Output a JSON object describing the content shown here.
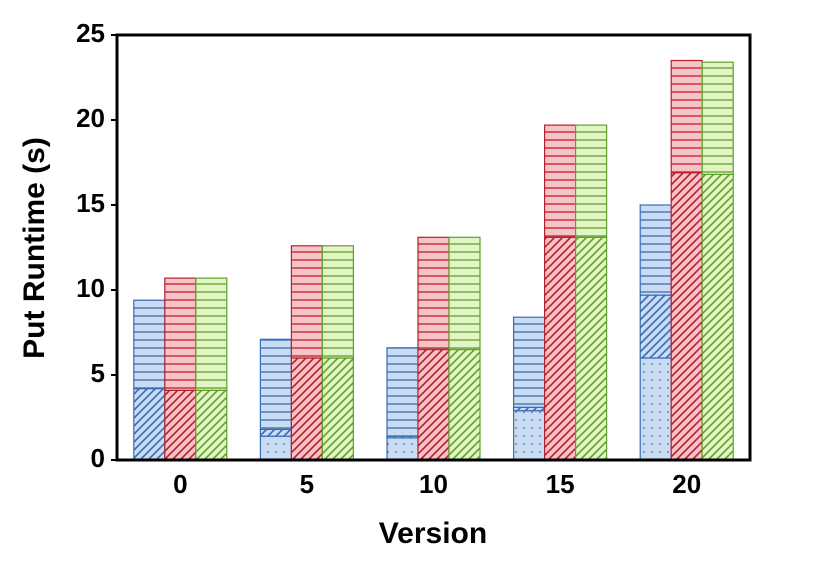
{
  "chart_data": {
    "type": "stacked-grouped-bar",
    "x_label": "Version",
    "y_label": "Put Runtime (s)",
    "categories": [
      0,
      5,
      10,
      15,
      20
    ],
    "ylim": [
      0,
      25
    ],
    "yticks": [
      0,
      5,
      10,
      15,
      20,
      25
    ],
    "series": [
      {
        "group": 0,
        "pattern": "dots",
        "color": "#3b6bb5",
        "fill": "#c9dcf2",
        "values": [
          0,
          1.4,
          1.3,
          2.9,
          6.0
        ]
      },
      {
        "group": 0,
        "pattern": "diagonal",
        "color": "#3b6bb5",
        "fill": "#c9dcf2",
        "values": [
          4.2,
          0.4,
          0.1,
          0.2,
          3.7
        ]
      },
      {
        "group": 0,
        "pattern": "horizontal",
        "color": "#3b6bb5",
        "fill": "#c9dcf2",
        "values": [
          5.2,
          5.3,
          5.2,
          5.3,
          5.3
        ]
      },
      {
        "group": 1,
        "pattern": "diagonal",
        "color": "#b5202e",
        "fill": "#f7c3c7",
        "values": [
          4.1,
          6.0,
          6.5,
          13.1,
          16.9
        ]
      },
      {
        "group": 1,
        "pattern": "horizontal",
        "color": "#b5202e",
        "fill": "#f7c3c7",
        "values": [
          6.6,
          6.6,
          6.6,
          6.6,
          6.6
        ]
      },
      {
        "group": 2,
        "pattern": "diagonal",
        "color": "#5ea02a",
        "fill": "#e3f4c6",
        "values": [
          4.1,
          6.0,
          6.5,
          13.1,
          16.8
        ]
      },
      {
        "group": 2,
        "pattern": "horizontal",
        "color": "#5ea02a",
        "fill": "#e3f4c6",
        "values": [
          6.6,
          6.6,
          6.6,
          6.6,
          6.6
        ]
      }
    ]
  }
}
